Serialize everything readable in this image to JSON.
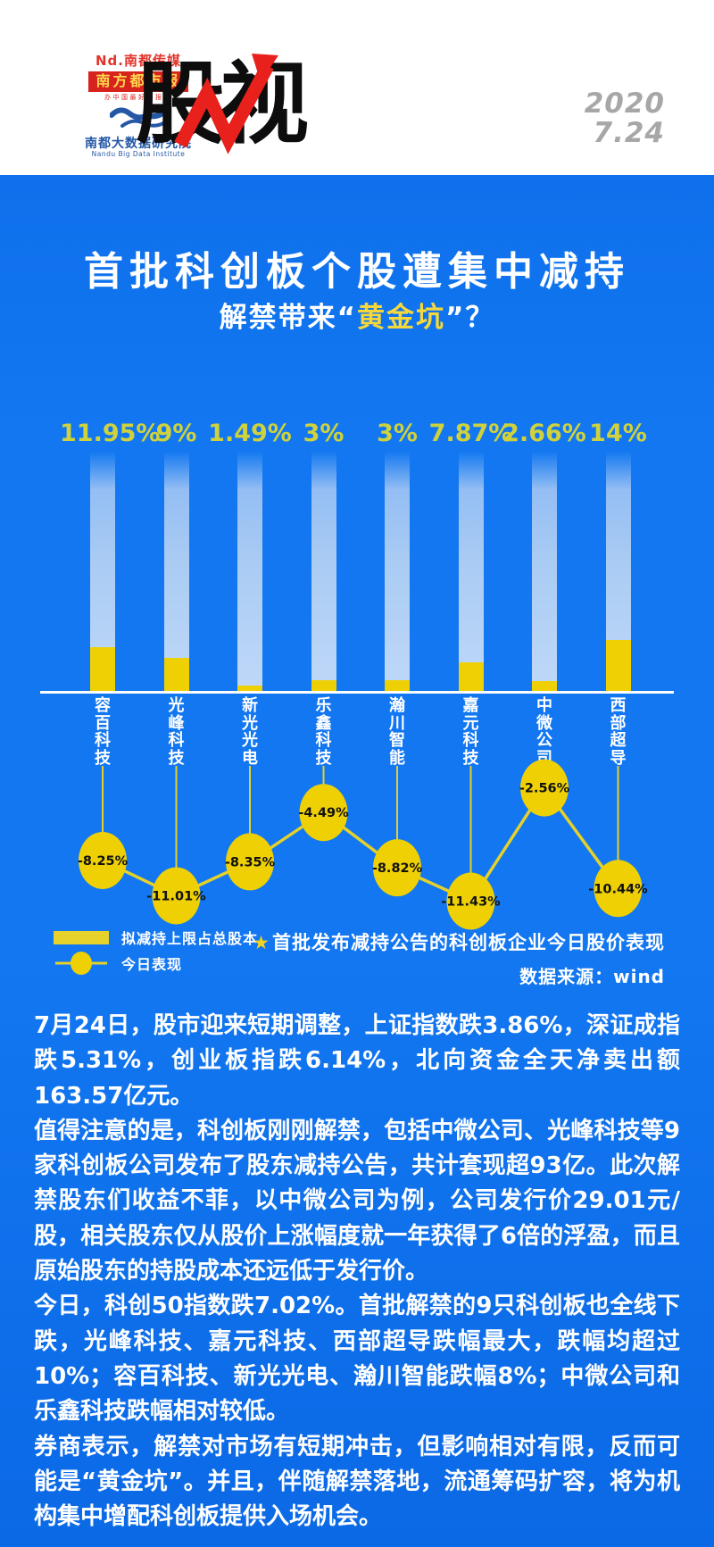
{
  "header": {
    "brand_line1": "Nd.南都传媒",
    "masthead": "南方都市报",
    "slogan": "办中国最好的报纸",
    "institute": "南都大数据研究院",
    "institute_en": "Nandu Big Data Institute",
    "logo_title": "股视",
    "date_line1": "2020",
    "date_line2": "7.24"
  },
  "title": "首批科创板个股遭集中减持",
  "subtitle": {
    "prefix": "解禁带来",
    "open_quote": "“",
    "highlight": "黄金坑",
    "close_quote": "”",
    "suffix": "？"
  },
  "chart_data": {
    "type": "combo",
    "categories": [
      "容百科技",
      "光峰科技",
      "新光光电",
      "乐鑫科技",
      "瀚川智能",
      "嘉元科技",
      "中微公司",
      "西部超导"
    ],
    "series": [
      {
        "name": "拟减持上限占总股本",
        "type": "bar",
        "unit": "%",
        "values": [
          11.95,
          9,
          1.49,
          3,
          3,
          7.87,
          2.66,
          14
        ],
        "labels": [
          "11.95%",
          "9%",
          "1.49%",
          "3%",
          "3%",
          "7.87%",
          "2.66%",
          "14%"
        ]
      },
      {
        "name": "今日表现",
        "type": "line",
        "unit": "%",
        "values": [
          -8.25,
          -11.01,
          -8.35,
          -4.49,
          -8.82,
          -11.43,
          -2.56,
          -10.44
        ],
        "labels": [
          "-8.25%",
          "-11.01%",
          "-8.35%",
          "-4.49%",
          "-8.82%",
          "-11.43%",
          "-2.56%",
          "-10.44%"
        ]
      }
    ],
    "legend": [
      "拟减持上限占总股本",
      "今日表现"
    ],
    "note_star": "★",
    "note": "首批发布减持公告的科创板企业今日股价表现",
    "source": "数据来源：wind",
    "grid": false,
    "legend_position": "bottom-left"
  },
  "body": {
    "paragraphs": [
      "7月24日，股市迎来短期调整，上证指数跌3.86%，深证成指跌5.31%，创业板指跌6.14%，北向资金全天净卖出额163.57亿元。",
      "值得注意的是，科创板刚刚解禁，包括中微公司、光峰科技等9家科创板公司发布了股东减持公告，共计套现超93亿。此次解禁股东们收益不菲，以中微公司为例，公司发行价29.01元/股，相关股东仅从股价上涨幅度就一年获得了6倍的浮盈，而且原始股东的持股成本还远低于发行价。",
      "今日，科创50指数跌7.02%。首批解禁的9只科创板也全线下跌，光峰科技、嘉元科技、西部超导跌幅最大，跌幅均超过10%；容百科技、新光光电、瀚川智能跌幅8%；中微公司和乐鑫科技跌幅相对较低。",
      "券商表示，解禁对市场有短期冲击，但影响相对有限，反而可能是“黄金坑”。并且，伴随解禁落地，流通筹码扩容，将为机构集中增配科创板提供入场机会。"
    ]
  },
  "colors": {
    "background_blue": "#1277f1",
    "bar_light_blue": "#a9cbf3",
    "accent_yellow": "#eed005",
    "value_label_yellow": "#cfd23c",
    "line_yellow": "#e4d12c",
    "subtitle_yellow": "#f7d83a",
    "masthead_red": "#d6231d",
    "arrow_red": "#e8211c",
    "institute_blue": "#2458a6",
    "date_gray": "#a7a7a7",
    "circle_text": "#111111"
  }
}
